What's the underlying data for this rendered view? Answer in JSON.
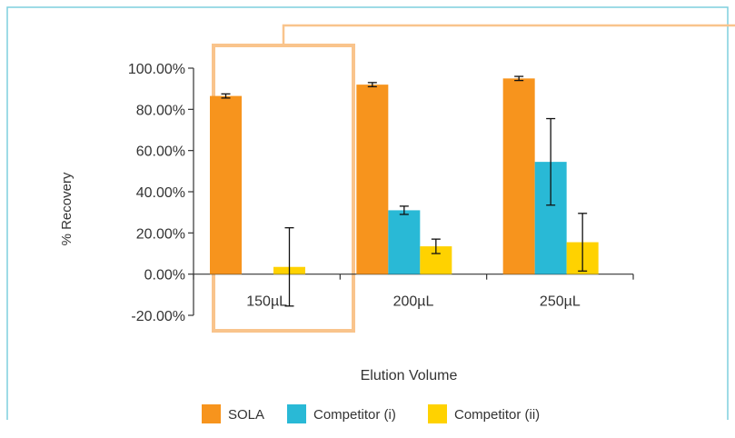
{
  "chart_data": {
    "type": "bar",
    "title": "",
    "xlabel": "Elution Volume",
    "ylabel": "% Recovery",
    "categories": [
      "150µL",
      "200µL",
      "250µL"
    ],
    "ylim": [
      -0.2,
      1.0
    ],
    "yticks": [
      1.0,
      0.8,
      0.6,
      0.4,
      0.2,
      0.0,
      -0.2
    ],
    "ytick_labels": [
      "100.00%",
      "80.00%",
      "60.00%",
      "40.00%",
      "20.00%",
      "0.00%",
      "-20.00%"
    ],
    "series": [
      {
        "name": "SOLA",
        "color": "#F7941D",
        "values": [
          0.865,
          0.92,
          0.95
        ],
        "err": [
          0.01,
          0.01,
          0.01
        ]
      },
      {
        "name": "Competitor (i)",
        "color": "#29B9D6",
        "values": [
          0.0,
          0.31,
          0.545
        ],
        "err": [
          0.0,
          0.02,
          0.21
        ]
      },
      {
        "name": "Competitor (ii)",
        "color": "#FFD200",
        "values": [
          0.035,
          0.135,
          0.155
        ],
        "err": [
          0.19,
          0.035,
          0.14
        ]
      }
    ],
    "legend_position": "bottom",
    "grid": false,
    "highlight_category": "150µL",
    "highlight_color": "#F9C48C",
    "frame_color": "#7ECFDD"
  }
}
